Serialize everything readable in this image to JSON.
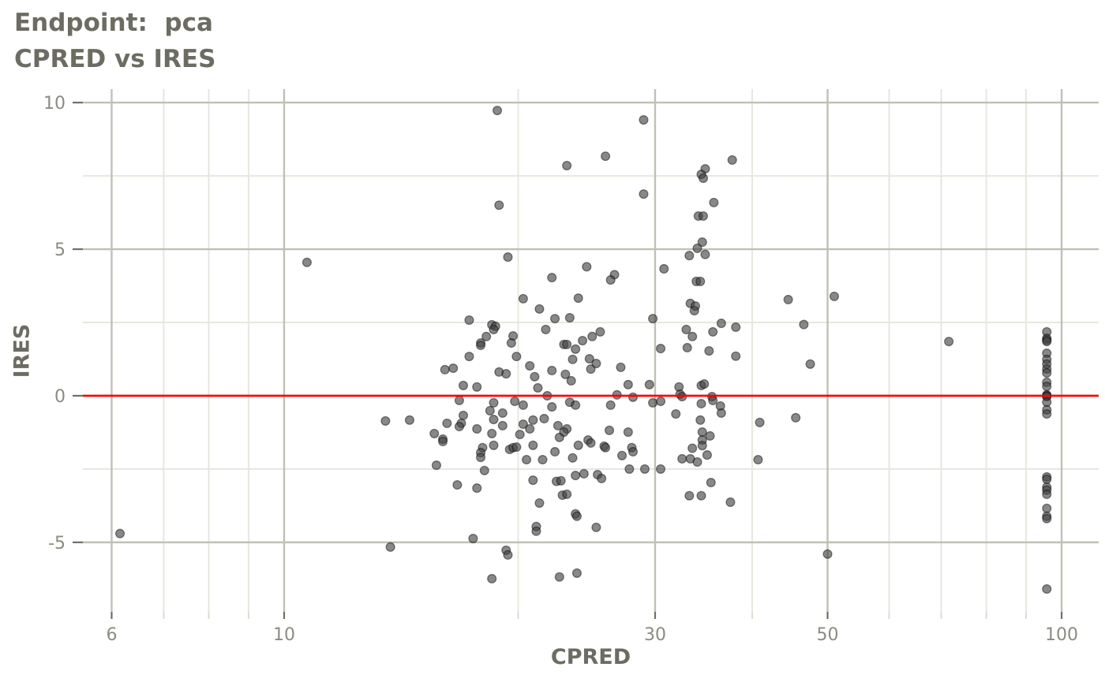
{
  "title": "Endpoint:  pca",
  "subtitle": "CPRED vs IRES",
  "colors": {
    "background": "#FFFFFF",
    "title_text": "#6C6C62",
    "tick_label_text": "#8B8B82",
    "grid_major": "#C0C0B6",
    "grid_minor": "#E7E7DF",
    "tick_mark_major": "#6F6F66",
    "tick_mark_minor": "#DCDCD2",
    "point_fill": "#3F3F3F",
    "point_stroke": "#000000",
    "reference_line": "#FF0000"
  },
  "chart_data": {
    "type": "scatter",
    "title": "Endpoint:  pca",
    "subtitle": "CPRED vs IRES",
    "xlabel": "CPRED",
    "ylabel": "IRES",
    "x_scale": "log10",
    "grid": true,
    "legend": "none",
    "x_ticks": [
      6,
      10,
      30,
      50,
      100
    ],
    "x_minor_ticks": [
      7,
      8,
      9,
      20,
      40,
      60,
      70,
      80,
      90
    ],
    "y_ticks": [
      -5,
      0,
      5,
      10
    ],
    "y_minor_ticks": [
      -2.5,
      2.5,
      7.5
    ],
    "xlim": [
      5.51,
      111.6
    ],
    "ylim": [
      -7.37,
      10.46
    ],
    "reference_line_y": 0,
    "points": [
      [
        18.8,
        9.73
      ],
      [
        18.9,
        6.5
      ],
      [
        19.4,
        4.73
      ],
      [
        29.0,
        9.41
      ],
      [
        25.9,
        8.17
      ],
      [
        23.1,
        7.85
      ],
      [
        37.7,
        8.04
      ],
      [
        34.8,
        7.74
      ],
      [
        34.4,
        7.55
      ],
      [
        34.6,
        7.42
      ],
      [
        29.0,
        6.88
      ],
      [
        35.7,
        6.59
      ],
      [
        34.1,
        6.13
      ],
      [
        34.6,
        6.13
      ],
      [
        34.5,
        5.24
      ],
      [
        34.0,
        5.03
      ],
      [
        33.2,
        4.78
      ],
      [
        34.8,
        4.82
      ],
      [
        24.5,
        4.4
      ],
      [
        30.8,
        4.33
      ],
      [
        26.6,
        4.13
      ],
      [
        26.3,
        3.95
      ],
      [
        22.1,
        4.03
      ],
      [
        33.9,
        3.9
      ],
      [
        34.3,
        3.9
      ],
      [
        20.3,
        3.31
      ],
      [
        21.3,
        2.96
      ],
      [
        17.3,
        2.58
      ],
      [
        18.5,
        2.42
      ],
      [
        18.7,
        2.37
      ],
      [
        18.6,
        2.26
      ],
      [
        19.7,
        2.04
      ],
      [
        18.2,
        2.02
      ],
      [
        17.9,
        1.8
      ],
      [
        19.6,
        1.8
      ],
      [
        21.7,
        2.26
      ],
      [
        17.9,
        1.72
      ],
      [
        19.9,
        1.34
      ],
      [
        17.3,
        1.34
      ],
      [
        20.7,
        1.02
      ],
      [
        16.1,
        0.89
      ],
      [
        16.5,
        0.94
      ],
      [
        18.9,
        0.81
      ],
      [
        19.3,
        0.75
      ],
      [
        21.0,
        0.65
      ],
      [
        17.0,
        0.35
      ],
      [
        17.7,
        0.3
      ],
      [
        21.2,
        0.27
      ],
      [
        21.8,
        0.0
      ],
      [
        16.8,
        -0.16
      ],
      [
        18.6,
        -0.24
      ],
      [
        19.8,
        -0.19
      ],
      [
        20.3,
        -0.32
      ],
      [
        18.4,
        -0.51
      ],
      [
        19.1,
        -0.59
      ],
      [
        13.5,
        -0.86
      ],
      [
        14.5,
        -0.83
      ],
      [
        16.2,
        -0.94
      ],
      [
        17.0,
        -0.67
      ],
      [
        16.9,
        -0.94
      ],
      [
        16.8,
        -1.05
      ],
      [
        18.6,
        -0.81
      ],
      [
        19.1,
        -1.02
      ],
      [
        20.3,
        -0.97
      ],
      [
        20.9,
        -0.83
      ],
      [
        21.6,
        -0.78
      ],
      [
        17.7,
        -1.13
      ],
      [
        18.5,
        -1.29
      ],
      [
        15.6,
        -1.29
      ],
      [
        16.0,
        -1.48
      ],
      [
        20.1,
        -1.32
      ],
      [
        20.7,
        -1.13
      ],
      [
        23.9,
        3.33
      ],
      [
        33.3,
        3.15
      ],
      [
        33.8,
        3.06
      ],
      [
        33.7,
        2.9
      ],
      [
        22.3,
        2.63
      ],
      [
        23.3,
        2.66
      ],
      [
        29.8,
        2.63
      ],
      [
        36.5,
        2.47
      ],
      [
        38.1,
        2.34
      ],
      [
        32.9,
        2.26
      ],
      [
        33.5,
        2.02
      ],
      [
        35.6,
        2.18
      ],
      [
        25.5,
        2.18
      ],
      [
        24.9,
        2.02
      ],
      [
        22.9,
        1.75
      ],
      [
        23.1,
        1.75
      ],
      [
        24.2,
        1.88
      ],
      [
        23.7,
        1.59
      ],
      [
        30.5,
        1.61
      ],
      [
        33.0,
        1.64
      ],
      [
        35.2,
        1.53
      ],
      [
        23.5,
        1.24
      ],
      [
        24.7,
        1.26
      ],
      [
        38.1,
        1.35
      ],
      [
        25.2,
        1.1
      ],
      [
        24.8,
        0.91
      ],
      [
        27.1,
        0.97
      ],
      [
        22.1,
        0.86
      ],
      [
        23.0,
        0.73
      ],
      [
        23.4,
        0.51
      ],
      [
        27.7,
        0.38
      ],
      [
        29.5,
        0.38
      ],
      [
        32.2,
        0.3
      ],
      [
        34.4,
        0.35
      ],
      [
        34.7,
        0.4
      ],
      [
        26.8,
        0.03
      ],
      [
        28.1,
        -0.05
      ],
      [
        32.3,
        0.05
      ],
      [
        32.5,
        -0.03
      ],
      [
        35.5,
        -0.03
      ],
      [
        23.3,
        -0.22
      ],
      [
        23.7,
        -0.32
      ],
      [
        26.3,
        -0.32
      ],
      [
        29.8,
        -0.24
      ],
      [
        30.5,
        -0.19
      ],
      [
        34.4,
        -0.27
      ],
      [
        35.6,
        -0.16
      ],
      [
        36.4,
        -0.35
      ],
      [
        36.5,
        -0.59
      ],
      [
        31.9,
        -0.62
      ],
      [
        22.1,
        -0.38
      ],
      [
        34.3,
        -0.83
      ],
      [
        22.5,
        -1.02
      ],
      [
        23.1,
        -1.13
      ],
      [
        22.9,
        -1.24
      ],
      [
        26.2,
        -1.18
      ],
      [
        27.7,
        -1.24
      ],
      [
        34.5,
        -1.24
      ],
      [
        35.3,
        -1.37
      ],
      [
        34.5,
        -1.51
      ],
      [
        22.6,
        -1.42
      ],
      [
        24.6,
        -1.51
      ],
      [
        25.8,
        -1.72
      ],
      [
        28.0,
        -1.77
      ],
      [
        16.0,
        -1.56
      ],
      [
        18.0,
        -1.77
      ],
      [
        17.9,
        -1.94
      ],
      [
        17.9,
        -2.1
      ],
      [
        18.6,
        -1.69
      ],
      [
        19.5,
        -1.83
      ],
      [
        19.7,
        -1.77
      ],
      [
        19.9,
        -1.75
      ],
      [
        20.9,
        -1.69
      ],
      [
        20.5,
        -2.18
      ],
      [
        21.5,
        -2.18
      ],
      [
        15.7,
        -2.37
      ],
      [
        18.1,
        -2.55
      ],
      [
        16.7,
        -3.04
      ],
      [
        17.7,
        -3.15
      ],
      [
        20.9,
        -2.88
      ],
      [
        21.3,
        -3.66
      ],
      [
        21.1,
        -4.46
      ],
      [
        21.1,
        -4.62
      ],
      [
        17.5,
        -4.87
      ],
      [
        13.7,
        -5.16
      ],
      [
        19.3,
        -5.27
      ],
      [
        19.4,
        -5.43
      ],
      [
        18.5,
        -6.24
      ],
      [
        22.3,
        -1.91
      ],
      [
        23.5,
        -2.12
      ],
      [
        23.9,
        -1.69
      ],
      [
        24.8,
        -1.61
      ],
      [
        25.9,
        -1.77
      ],
      [
        27.2,
        -2.04
      ],
      [
        28.1,
        -1.91
      ],
      [
        33.5,
        -1.79
      ],
      [
        34.5,
        -1.7
      ],
      [
        32.5,
        -2.15
      ],
      [
        33.3,
        -2.15
      ],
      [
        34.0,
        -2.26
      ],
      [
        35.0,
        -2.02
      ],
      [
        27.8,
        -2.5
      ],
      [
        29.1,
        -2.5
      ],
      [
        30.5,
        -2.5
      ],
      [
        23.7,
        -2.72
      ],
      [
        24.3,
        -2.66
      ],
      [
        25.3,
        -2.69
      ],
      [
        25.6,
        -2.82
      ],
      [
        22.4,
        -2.92
      ],
      [
        22.7,
        -2.9
      ],
      [
        22.8,
        -3.39
      ],
      [
        23.1,
        -3.36
      ],
      [
        35.4,
        -2.96
      ],
      [
        33.2,
        -3.41
      ],
      [
        34.4,
        -3.41
      ],
      [
        37.5,
        -3.63
      ],
      [
        23.7,
        -4.03
      ],
      [
        23.8,
        -4.11
      ],
      [
        25.2,
        -4.49
      ],
      [
        22.6,
        -6.18
      ],
      [
        23.8,
        -6.05
      ],
      [
        44.5,
        3.28
      ],
      [
        51.0,
        3.39
      ],
      [
        46.6,
        2.43
      ],
      [
        47.5,
        1.08
      ],
      [
        40.9,
        -0.91
      ],
      [
        45.5,
        -0.75
      ],
      [
        40.7,
        -2.18
      ],
      [
        50.0,
        -5.4
      ],
      [
        71.6,
        1.85
      ],
      [
        10.7,
        4.55
      ],
      [
        6.15,
        -4.7
      ],
      [
        95.7,
        2.18
      ],
      [
        95.7,
        1.96
      ],
      [
        95.7,
        1.9
      ],
      [
        95.7,
        1.85
      ],
      [
        95.7,
        1.45
      ],
      [
        95.7,
        1.24
      ],
      [
        95.7,
        1.08
      ],
      [
        95.7,
        0.91
      ],
      [
        95.7,
        0.78
      ],
      [
        95.7,
        0.46
      ],
      [
        95.7,
        0.32
      ],
      [
        95.7,
        0.03
      ],
      [
        95.7,
        0.0
      ],
      [
        95.7,
        -0.03
      ],
      [
        95.7,
        -0.22
      ],
      [
        95.7,
        -0.48
      ],
      [
        95.7,
        -0.62
      ],
      [
        95.7,
        -2.77
      ],
      [
        95.7,
        -2.85
      ],
      [
        95.7,
        -3.12
      ],
      [
        95.7,
        -3.22
      ],
      [
        95.7,
        -3.36
      ],
      [
        95.7,
        -3.84
      ],
      [
        95.7,
        -4.11
      ],
      [
        95.7,
        -4.19
      ],
      [
        95.7,
        -6.59
      ]
    ]
  }
}
